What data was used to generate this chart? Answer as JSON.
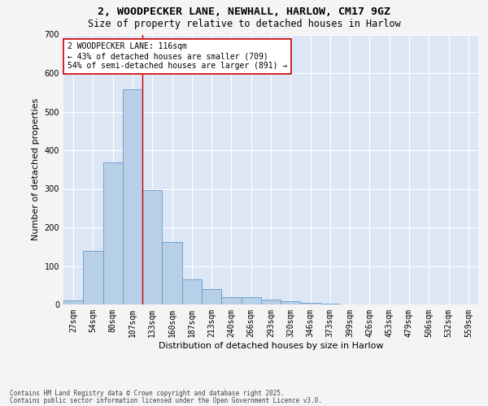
{
  "title_line1": "2, WOODPECKER LANE, NEWHALL, HARLOW, CM17 9GZ",
  "title_line2": "Size of property relative to detached houses in Harlow",
  "xlabel": "Distribution of detached houses by size in Harlow",
  "ylabel": "Number of detached properties",
  "bar_color": "#b8cfe8",
  "bar_edge_color": "#6699cc",
  "background_color": "#dce6f5",
  "fig_background": "#f4f4f4",
  "grid_color": "#ffffff",
  "categories": [
    "27sqm",
    "54sqm",
    "80sqm",
    "107sqm",
    "133sqm",
    "160sqm",
    "187sqm",
    "213sqm",
    "240sqm",
    "266sqm",
    "293sqm",
    "320sqm",
    "346sqm",
    "373sqm",
    "399sqm",
    "426sqm",
    "453sqm",
    "479sqm",
    "506sqm",
    "532sqm",
    "559sqm"
  ],
  "values": [
    10,
    138,
    368,
    557,
    297,
    162,
    65,
    40,
    20,
    18,
    13,
    8,
    4,
    2,
    1,
    1,
    0,
    0,
    0,
    0,
    1
  ],
  "ylim": [
    0,
    700
  ],
  "yticks": [
    0,
    100,
    200,
    300,
    400,
    500,
    600,
    700
  ],
  "vline_x": 3.5,
  "annotation_text": "2 WOODPECKER LANE: 116sqm\n← 43% of detached houses are smaller (709)\n54% of semi-detached houses are larger (891) →",
  "annotation_box_color": "#ffffff",
  "annotation_box_edge": "#cc0000",
  "vline_color": "#cc0000",
  "footer_line1": "Contains HM Land Registry data © Crown copyright and database right 2025.",
  "footer_line2": "Contains public sector information licensed under the Open Government Licence v3.0.",
  "title_fontsize": 9.5,
  "subtitle_fontsize": 8.5,
  "axis_label_fontsize": 8,
  "tick_fontsize": 7,
  "annotation_fontsize": 7,
  "footer_fontsize": 5.5
}
